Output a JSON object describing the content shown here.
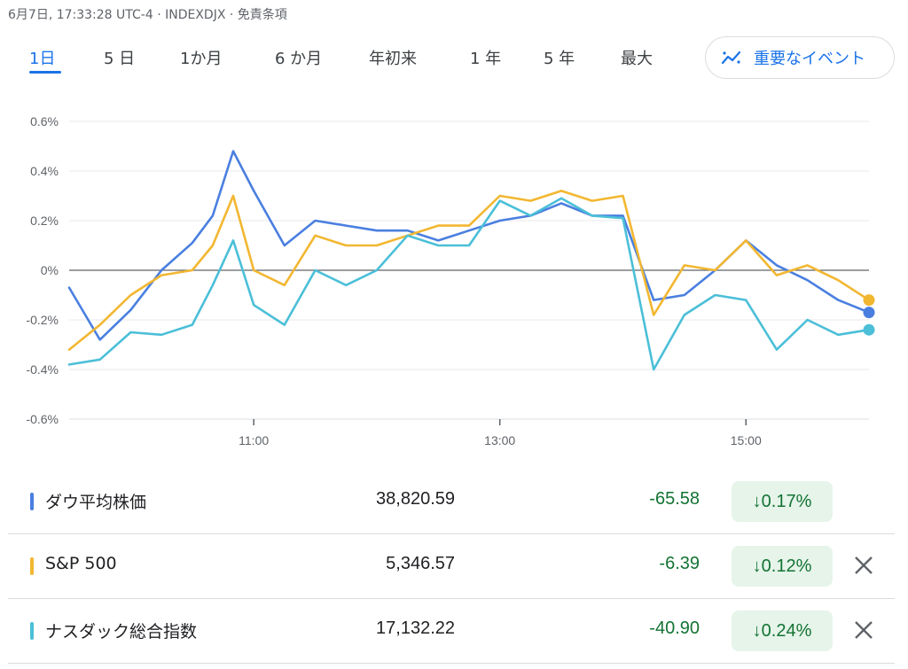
{
  "header": {
    "disclaimer": "6月7日, 17:33:28 UTC-4 · INDEXDJX · 免責条項"
  },
  "tabs": [
    {
      "label": "1日",
      "active": true
    },
    {
      "label": "5 日",
      "active": false
    },
    {
      "label": "1か月",
      "active": false
    },
    {
      "label": "6 か月",
      "active": false
    },
    {
      "label": "年初来",
      "active": false
    },
    {
      "label": "1 年",
      "active": false
    },
    {
      "label": "5 年",
      "active": false
    },
    {
      "label": "最大",
      "active": false
    }
  ],
  "events_button": {
    "label": "重要なイベント",
    "icon": "sparkline-icon"
  },
  "chart_data": {
    "type": "line",
    "x_ticks": [
      "11:00",
      "13:00",
      "15:00"
    ],
    "y_ticks": [
      "0.6%",
      "0.4%",
      "0.2%",
      "0%",
      "-0.2%",
      "-0.4%",
      "-0.6%"
    ],
    "ylim": [
      -0.6,
      0.6
    ],
    "xlim": [
      "9:30",
      "16:00"
    ],
    "x": [
      "9:30",
      "9:45",
      "10:00",
      "10:15",
      "10:30",
      "10:40",
      "10:50",
      "11:00",
      "11:15",
      "11:30",
      "11:45",
      "12:00",
      "12:15",
      "12:30",
      "12:45",
      "13:00",
      "13:15",
      "13:30",
      "13:45",
      "14:00",
      "14:15",
      "14:30",
      "14:45",
      "15:00",
      "15:15",
      "15:30",
      "15:45",
      "16:00"
    ],
    "series": [
      {
        "color": "#4a7fe0",
        "values": [
          -0.07,
          -0.28,
          -0.16,
          0.0,
          0.11,
          0.22,
          0.48,
          0.32,
          0.1,
          0.2,
          0.18,
          0.16,
          0.16,
          0.12,
          0.16,
          0.2,
          0.22,
          0.27,
          0.22,
          0.22,
          -0.12,
          -0.1,
          0.0,
          0.12,
          0.02,
          -0.04,
          -0.12,
          -0.17
        ]
      },
      {
        "color": "#f2b731",
        "values": [
          -0.32,
          -0.22,
          -0.1,
          -0.02,
          0.0,
          0.1,
          0.3,
          0.0,
          -0.06,
          0.14,
          0.1,
          0.1,
          0.14,
          0.18,
          0.18,
          0.3,
          0.28,
          0.32,
          0.28,
          0.3,
          -0.18,
          0.02,
          0.0,
          0.12,
          -0.02,
          0.02,
          -0.04,
          -0.12
        ]
      },
      {
        "color": "#4bbfd8",
        "values": [
          -0.38,
          -0.36,
          -0.25,
          -0.26,
          -0.22,
          -0.06,
          0.12,
          -0.14,
          -0.22,
          0.0,
          -0.06,
          0.0,
          0.14,
          0.1,
          0.1,
          0.28,
          0.22,
          0.29,
          0.22,
          0.21,
          -0.4,
          -0.18,
          -0.1,
          -0.12,
          -0.32,
          -0.2,
          -0.26,
          -0.24
        ]
      }
    ],
    "baseline": 0,
    "grid": true
  },
  "rows": [
    {
      "color": "#4a7fe0",
      "name": "ダウ平均株価",
      "price": "38,820.59",
      "change": "-65.58",
      "pct": "↓0.17%",
      "removable": false
    },
    {
      "color": "#f2b731",
      "name": "S&P 500",
      "price": "5,346.57",
      "change": "-6.39",
      "pct": "↓0.12%",
      "removable": true
    },
    {
      "color": "#4bbfd8",
      "name": "ナスダック総合指数",
      "price": "17,132.22",
      "change": "-40.90",
      "pct": "↓0.24%",
      "removable": true
    }
  ]
}
